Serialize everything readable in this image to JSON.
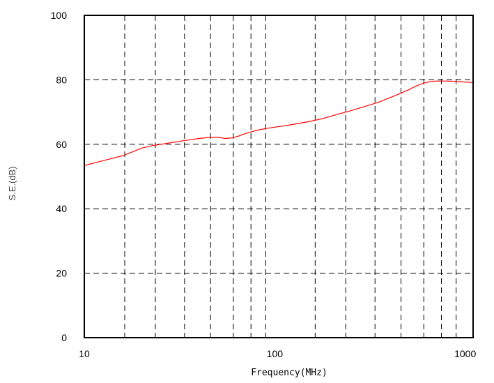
{
  "chart_data": {
    "type": "line",
    "xlabel": "Frequency(MHz)",
    "ylabel": "S.E.(dB)",
    "x_scale": "log",
    "xlim": [
      10,
      1100
    ],
    "ylim": [
      0,
      100
    ],
    "x_tick_labels": [
      "10",
      "100",
      "1000"
    ],
    "y_tick_labels": [
      "0",
      "20",
      "40",
      "60",
      "80",
      "100"
    ],
    "y_ticks": [
      0,
      20,
      40,
      60,
      80,
      100
    ],
    "x_ticks": [
      10,
      100,
      1000
    ],
    "grid": true,
    "grid_style": "dashed",
    "x_gridlines": [
      16.3,
      23.6,
      33.6,
      46,
      60.6,
      75,
      89.6,
      163,
      236,
      336,
      460,
      606,
      750,
      896
    ],
    "y_gridlines": [
      20,
      40,
      60,
      80
    ],
    "series": [
      {
        "color": "#ff0000",
        "x": [
          10,
          12,
          14,
          16,
          18,
          20,
          23,
          26,
          30,
          35,
          40,
          45,
          50,
          55,
          60,
          65,
          70,
          80,
          90,
          100,
          120,
          150,
          180,
          200,
          250,
          300,
          350,
          400,
          450,
          500,
          550,
          600,
          650,
          700,
          750,
          800,
          900,
          1000,
          1100
        ],
        "y": [
          53.4,
          54.6,
          55.6,
          56.5,
          57.7,
          58.8,
          59.6,
          60.1,
          60.7,
          61.3,
          61.8,
          62.1,
          62.2,
          61.8,
          62.0,
          62.6,
          63.3,
          64.3,
          64.9,
          65.3,
          66.0,
          67.0,
          68.0,
          68.8,
          70.4,
          71.8,
          73.0,
          74.4,
          75.6,
          76.8,
          78.0,
          78.9,
          79.4,
          79.6,
          79.6,
          79.6,
          79.5,
          79.3,
          79.2
        ]
      }
    ]
  }
}
